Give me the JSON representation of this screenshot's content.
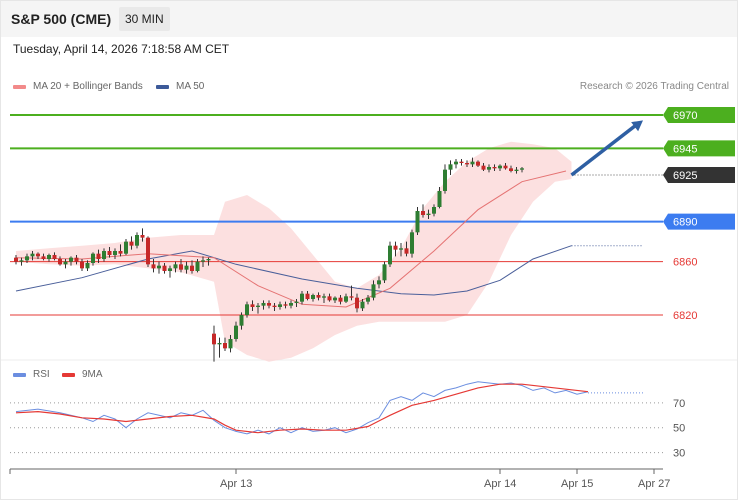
{
  "header": {
    "title": "S&P 500 (CME)",
    "timeframe": "30 MIN",
    "datetime": "Tuesday, April 14, 2026 7:18:58 AM CET",
    "credit": "Research © 2026 Trading Central"
  },
  "colors": {
    "up_candle": "#2e7d32",
    "down_candle": "#c62828",
    "bollinger": "#fbdada",
    "ma20": "#e57373",
    "ma50": "#4a5f9a",
    "resistance": "#4caf1f",
    "pivot": "#3c7cf0",
    "support": "#e53935",
    "current": "#333333",
    "rsi": "#6b8ee0",
    "rsi_ma": "#e53935",
    "arrow": "#2e5fa3"
  },
  "chart_data": [
    {
      "type": "candlestick",
      "legend": [
        {
          "name": "MA 20 + Bollinger Bands",
          "color": "#f28a8a"
        },
        {
          "name": "MA 50",
          "color": "#3c5a99"
        }
      ],
      "ylim": [
        6790,
        6985
      ],
      "x_range": [
        0,
        112
      ],
      "xticks": [
        {
          "x": 40,
          "label": "Apr 13"
        },
        {
          "x": 88,
          "label": "Apr 14"
        },
        {
          "x": 102,
          "label": "Apr 15"
        },
        {
          "x": 116,
          "label": "Apr 27"
        }
      ],
      "levels": [
        {
          "value": 6970,
          "label": "6970",
          "kind": "resistance"
        },
        {
          "value": 6945,
          "label": "6945",
          "kind": "resistance"
        },
        {
          "value": 6925,
          "label": "6925",
          "kind": "current"
        },
        {
          "value": 6890,
          "label": "6890",
          "kind": "pivot"
        },
        {
          "value": 6860,
          "label": "6860",
          "kind": "support"
        },
        {
          "value": 6820,
          "label": "6820",
          "kind": "support"
        }
      ],
      "forecast_arrow": {
        "from": [
          101,
          6925
        ],
        "to": [
          114,
          6966
        ]
      },
      "candles": [
        [
          6863,
          6865,
          6858,
          6860
        ],
        [
          6860,
          6863,
          6857,
          6861
        ],
        [
          6861,
          6866,
          6859,
          6864
        ],
        [
          6864,
          6868,
          6861,
          6866
        ],
        [
          6866,
          6867,
          6862,
          6864
        ],
        [
          6864,
          6866,
          6861,
          6862
        ],
        [
          6862,
          6866,
          6860,
          6865
        ],
        [
          6865,
          6867,
          6861,
          6862
        ],
        [
          6862,
          6864,
          6857,
          6858
        ],
        [
          6858,
          6862,
          6855,
          6860
        ],
        [
          6860,
          6864,
          6857,
          6863
        ],
        [
          6863,
          6865,
          6858,
          6860
        ],
        [
          6860,
          6862,
          6853,
          6855
        ],
        [
          6855,
          6861,
          6853,
          6859
        ],
        [
          6859,
          6867,
          6857,
          6866
        ],
        [
          6866,
          6869,
          6859,
          6862
        ],
        [
          6862,
          6870,
          6860,
          6868
        ],
        [
          6868,
          6871,
          6863,
          6865
        ],
        [
          6865,
          6870,
          6862,
          6868
        ],
        [
          6868,
          6873,
          6864,
          6866
        ],
        [
          6866,
          6877,
          6865,
          6875
        ],
        [
          6875,
          6879,
          6869,
          6872
        ],
        [
          6872,
          6882,
          6870,
          6880
        ],
        [
          6880,
          6885,
          6875,
          6878
        ],
        [
          6878,
          6879,
          6856,
          6858
        ],
        [
          6858,
          6862,
          6852,
          6855
        ],
        [
          6855,
          6860,
          6851,
          6857
        ],
        [
          6857,
          6859,
          6851,
          6853
        ],
        [
          6853,
          6857,
          6848,
          6855
        ],
        [
          6855,
          6860,
          6852,
          6858
        ],
        [
          6858,
          6862,
          6852,
          6854
        ],
        [
          6854,
          6860,
          6851,
          6857
        ],
        [
          6857,
          6861,
          6851,
          6853
        ],
        [
          6853,
          6862,
          6852,
          6860
        ],
        [
          6860,
          6864,
          6856,
          6861
        ],
        [
          6861,
          6863,
          6857,
          6862
        ],
        [
          6806,
          6812,
          6785,
          6798
        ],
        [
          6798,
          6803,
          6788,
          6799
        ],
        [
          6799,
          6803,
          6793,
          6795
        ],
        [
          6795,
          6805,
          6792,
          6802
        ],
        [
          6802,
          6815,
          6800,
          6812
        ],
        [
          6812,
          6822,
          6809,
          6820
        ],
        [
          6820,
          6830,
          6818,
          6828
        ],
        [
          6828,
          6831,
          6823,
          6826
        ],
        [
          6826,
          6829,
          6821,
          6827
        ],
        [
          6827,
          6831,
          6824,
          6829
        ],
        [
          6829,
          6831,
          6825,
          6827
        ],
        [
          6827,
          6829,
          6823,
          6826
        ],
        [
          6826,
          6830,
          6824,
          6828
        ],
        [
          6828,
          6830,
          6825,
          6827
        ],
        [
          6827,
          6831,
          6825,
          6829
        ],
        [
          6829,
          6832,
          6826,
          6830
        ],
        [
          6830,
          6838,
          6828,
          6836
        ],
        [
          6836,
          6838,
          6831,
          6832
        ],
        [
          6832,
          6836,
          6830,
          6835
        ],
        [
          6835,
          6837,
          6831,
          6833
        ],
        [
          6833,
          6836,
          6829,
          6834
        ],
        [
          6834,
          6836,
          6830,
          6831
        ],
        [
          6831,
          6834,
          6829,
          6833
        ],
        [
          6833,
          6835,
          6828,
          6830
        ],
        [
          6830,
          6836,
          6829,
          6834
        ],
        [
          6834,
          6842,
          6831,
          6833
        ],
        [
          6833,
          6836,
          6822,
          6825
        ],
        [
          6825,
          6832,
          6823,
          6830
        ],
        [
          6830,
          6835,
          6828,
          6833
        ],
        [
          6833,
          6846,
          6831,
          6843
        ],
        [
          6843,
          6849,
          6840,
          6846
        ],
        [
          6846,
          6860,
          6844,
          6858
        ],
        [
          6858,
          6875,
          6856,
          6872
        ],
        [
          6872,
          6875,
          6864,
          6869
        ],
        [
          6869,
          6874,
          6864,
          6870
        ],
        [
          6870,
          6875,
          6864,
          6866
        ],
        [
          6866,
          6884,
          6863,
          6882
        ],
        [
          6882,
          6901,
          6880,
          6898
        ],
        [
          6898,
          6903,
          6893,
          6895
        ],
        [
          6895,
          6899,
          6892,
          6896
        ],
        [
          6896,
          6903,
          6894,
          6901
        ],
        [
          6901,
          6916,
          6900,
          6913
        ],
        [
          6913,
          6933,
          6911,
          6929
        ],
        [
          6929,
          6936,
          6925,
          6933
        ],
        [
          6933,
          6937,
          6930,
          6935
        ],
        [
          6935,
          6937,
          6932,
          6934
        ],
        [
          6934,
          6936,
          6931,
          6933
        ],
        [
          6933,
          6938,
          6931,
          6935
        ],
        [
          6935,
          6936,
          6931,
          6932
        ],
        [
          6932,
          6934,
          6928,
          6929
        ],
        [
          6929,
          6933,
          6927,
          6931
        ],
        [
          6931,
          6933,
          6928,
          6930
        ],
        [
          6930,
          6933,
          6928,
          6932
        ],
        [
          6932,
          6934,
          6929,
          6930
        ],
        [
          6930,
          6932,
          6927,
          6928
        ],
        [
          6928,
          6931,
          6926,
          6929
        ],
        [
          6929,
          6931,
          6927,
          6930
        ]
      ],
      "ma20": [
        [
          0,
          6863
        ],
        [
          12,
          6862
        ],
        [
          24,
          6866
        ],
        [
          36,
          6863
        ],
        [
          44,
          6842
        ],
        [
          52,
          6828
        ],
        [
          60,
          6826
        ],
        [
          68,
          6840
        ],
        [
          76,
          6868
        ],
        [
          84,
          6899
        ],
        [
          92,
          6920
        ],
        [
          100,
          6928
        ]
      ],
      "bollinger": [
        [
          0,
          6860,
          6868
        ],
        [
          6,
          6858,
          6870
        ],
        [
          12,
          6857,
          6872
        ],
        [
          18,
          6858,
          6874
        ],
        [
          24,
          6855,
          6878
        ],
        [
          30,
          6852,
          6880
        ],
        [
          36,
          6845,
          6880
        ],
        [
          38,
          6800,
          6905
        ],
        [
          42,
          6790,
          6910
        ],
        [
          46,
          6785,
          6900
        ],
        [
          50,
          6788,
          6885
        ],
        [
          54,
          6795,
          6865
        ],
        [
          58,
          6805,
          6845
        ],
        [
          62,
          6812,
          6840
        ],
        [
          66,
          6815,
          6850
        ],
        [
          70,
          6815,
          6870
        ],
        [
          74,
          6815,
          6900
        ],
        [
          78,
          6815,
          6920
        ],
        [
          82,
          6820,
          6935
        ],
        [
          86,
          6845,
          6945
        ],
        [
          90,
          6880,
          6950
        ],
        [
          94,
          6905,
          6948
        ],
        [
          98,
          6920,
          6945
        ],
        [
          101,
          6922,
          6935
        ]
      ],
      "ma50": [
        [
          0,
          6838
        ],
        [
          12,
          6848
        ],
        [
          24,
          6862
        ],
        [
          32,
          6868
        ],
        [
          40,
          6858
        ],
        [
          52,
          6847
        ],
        [
          62,
          6840
        ],
        [
          70,
          6836
        ],
        [
          76,
          6835
        ],
        [
          82,
          6838
        ],
        [
          88,
          6846
        ],
        [
          94,
          6862
        ],
        [
          101,
          6872
        ]
      ],
      "ma50_projection": [
        [
          101,
          6872
        ],
        [
          114,
          6872
        ]
      ],
      "current_projection": [
        [
          101,
          6925
        ],
        [
          114,
          6925
        ]
      ]
    },
    {
      "type": "line",
      "legend": [
        {
          "name": "RSI",
          "color": "#6b8ee0"
        },
        {
          "name": "9MA",
          "color": "#e53935"
        }
      ],
      "ylim": [
        20,
        90
      ],
      "yticks": [
        70,
        50,
        30
      ],
      "x_range": [
        0,
        112
      ],
      "series": [
        {
          "key": "rsi",
          "values": [
            [
              0,
              63
            ],
            [
              4,
              65
            ],
            [
              8,
              62
            ],
            [
              12,
              58
            ],
            [
              14,
              55
            ],
            [
              16,
              60
            ],
            [
              18,
              57
            ],
            [
              20,
              50
            ],
            [
              22,
              57
            ],
            [
              24,
              62
            ],
            [
              26,
              60
            ],
            [
              28,
              58
            ],
            [
              30,
              62
            ],
            [
              32,
              60
            ],
            [
              34,
              64
            ],
            [
              36,
              56
            ],
            [
              38,
              50
            ],
            [
              40,
              47
            ],
            [
              42,
              45
            ],
            [
              44,
              48
            ],
            [
              46,
              45
            ],
            [
              48,
              50
            ],
            [
              50,
              46
            ],
            [
              52,
              50
            ],
            [
              54,
              47
            ],
            [
              56,
              48
            ],
            [
              58,
              50
            ],
            [
              60,
              46
            ],
            [
              62,
              49
            ],
            [
              64,
              54
            ],
            [
              66,
              58
            ],
            [
              68,
              72
            ],
            [
              70,
              75
            ],
            [
              72,
              72
            ],
            [
              74,
              78
            ],
            [
              76,
              75
            ],
            [
              78,
              80
            ],
            [
              80,
              82
            ],
            [
              82,
              85
            ],
            [
              84,
              87
            ],
            [
              86,
              86
            ],
            [
              88,
              85
            ],
            [
              90,
              86
            ],
            [
              92,
              84
            ],
            [
              94,
              80
            ],
            [
              96,
              82
            ],
            [
              98,
              78
            ],
            [
              100,
              80
            ],
            [
              102,
              77
            ],
            [
              104,
              79
            ]
          ]
        },
        {
          "key": "rsi_ma",
          "values": [
            [
              0,
              62
            ],
            [
              4,
              63
            ],
            [
              8,
              61
            ],
            [
              12,
              58
            ],
            [
              16,
              57
            ],
            [
              20,
              55
            ],
            [
              24,
              57
            ],
            [
              28,
              59
            ],
            [
              32,
              60
            ],
            [
              36,
              57
            ],
            [
              38,
              52
            ],
            [
              40,
              48
            ],
            [
              44,
              46
            ],
            [
              48,
              48
            ],
            [
              52,
              49
            ],
            [
              56,
              48
            ],
            [
              60,
              48
            ],
            [
              64,
              51
            ],
            [
              68,
              60
            ],
            [
              72,
              68
            ],
            [
              76,
              72
            ],
            [
              80,
              77
            ],
            [
              84,
              82
            ],
            [
              88,
              85
            ],
            [
              92,
              85
            ],
            [
              96,
              83
            ],
            [
              100,
              81
            ],
            [
              104,
              79
            ]
          ]
        }
      ],
      "rsi_projection": [
        [
          104,
          78
        ],
        [
          114,
          78
        ]
      ]
    }
  ]
}
